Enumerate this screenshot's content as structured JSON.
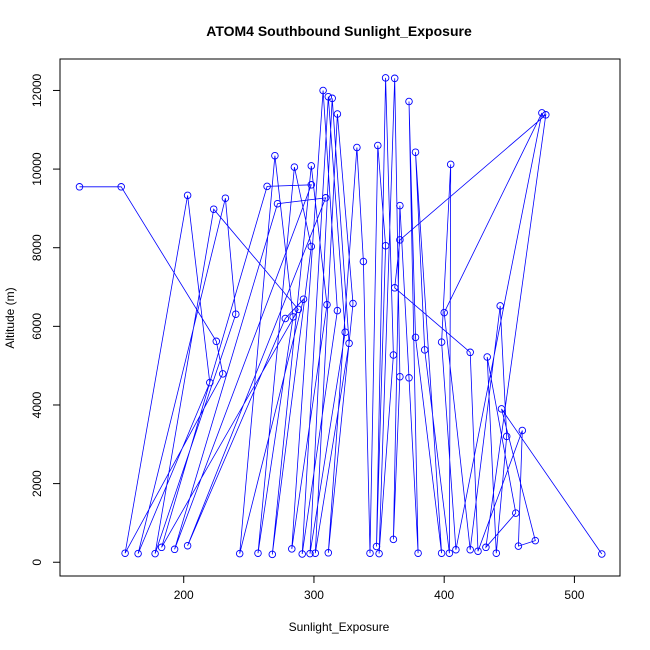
{
  "chart_data": {
    "type": "line",
    "title": "ATOM4 Southbound Sunlight_Exposure",
    "xlabel": "Sunlight_Exposure",
    "ylabel": "Altitude (m)",
    "xlim": [
      105,
      535
    ],
    "ylim": [
      -350,
      12800
    ],
    "xticks": [
      200,
      300,
      400,
      500
    ],
    "yticks": [
      0,
      2000,
      4000,
      6000,
      8000,
      10000,
      12000
    ],
    "grid": false,
    "series": [
      {
        "color": "#0000ff",
        "marker": "open-circle",
        "points": [
          [
            120,
            9550
          ],
          [
            152,
            9550
          ],
          [
            225,
            5620
          ],
          [
            230,
            4790
          ],
          [
            155,
            230
          ],
          [
            203,
            9330
          ],
          [
            220,
            4570
          ],
          [
            165,
            220
          ],
          [
            232,
            9260
          ],
          [
            240,
            6310
          ],
          [
            178,
            220
          ],
          [
            223,
            8980
          ],
          [
            288,
            6430
          ],
          [
            183,
            380
          ],
          [
            264,
            9560
          ],
          [
            298,
            9600
          ],
          [
            193,
            330
          ],
          [
            272,
            9120
          ],
          [
            309,
            9270
          ],
          [
            203,
            420
          ],
          [
            278,
            6200
          ],
          [
            292,
            6690
          ],
          [
            243,
            220
          ],
          [
            270,
            10340
          ],
          [
            284,
            6240
          ],
          [
            257,
            230
          ],
          [
            285,
            10050
          ],
          [
            298,
            8030
          ],
          [
            268,
            200
          ],
          [
            298,
            10080
          ],
          [
            310,
            6550
          ],
          [
            283,
            340
          ],
          [
            307,
            12000
          ],
          [
            318,
            6400
          ],
          [
            291,
            210
          ],
          [
            311,
            11840
          ],
          [
            324,
            5850
          ],
          [
            297,
            220
          ],
          [
            314,
            11800
          ],
          [
            327,
            5570
          ],
          [
            301,
            230
          ],
          [
            318,
            11400
          ],
          [
            330,
            6580
          ],
          [
            311,
            240
          ],
          [
            333,
            10550
          ],
          [
            338,
            7650
          ],
          [
            343,
            230
          ],
          [
            349,
            10600
          ],
          [
            355,
            8050
          ],
          [
            348,
            400
          ],
          [
            355,
            12320
          ],
          [
            361,
            5270
          ],
          [
            350,
            220
          ],
          [
            362,
            12310
          ],
          [
            366,
            4720
          ],
          [
            361,
            580
          ],
          [
            366,
            9070
          ],
          [
            373,
            4690
          ],
          [
            380,
            230
          ],
          [
            373,
            11720
          ],
          [
            378,
            5720
          ],
          [
            398,
            230
          ],
          [
            378,
            10430
          ],
          [
            385,
            5400
          ],
          [
            404,
            230
          ],
          [
            405,
            10120
          ],
          [
            398,
            5600
          ],
          [
            409,
            320
          ],
          [
            475,
            11430
          ],
          [
            400,
            6350
          ],
          [
            420,
            320
          ],
          [
            443,
            6520
          ],
          [
            448,
            3200
          ],
          [
            440,
            230
          ],
          [
            433,
            5220
          ],
          [
            455,
            1250
          ],
          [
            432,
            380
          ],
          [
            478,
            11380
          ],
          [
            366,
            8200
          ],
          [
            362,
            6980
          ],
          [
            420,
            5340
          ],
          [
            426,
            280
          ],
          [
            460,
            3350
          ],
          [
            457,
            410
          ],
          [
            470,
            550
          ],
          [
            444,
            3900
          ],
          [
            521,
            210
          ]
        ]
      }
    ]
  }
}
